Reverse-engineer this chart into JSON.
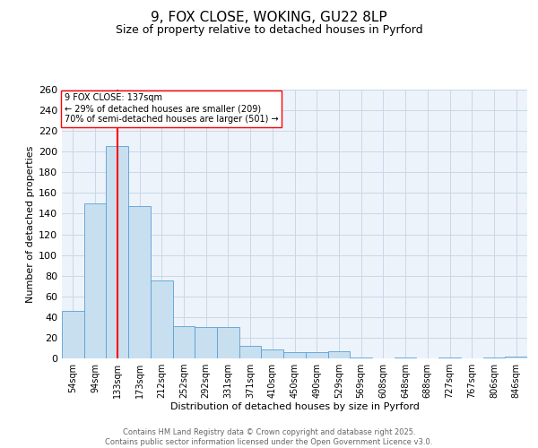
{
  "title1": "9, FOX CLOSE, WOKING, GU22 8LP",
  "title2": "Size of property relative to detached houses in Pyrford",
  "xlabel": "Distribution of detached houses by size in Pyrford",
  "ylabel": "Number of detached properties",
  "categories": [
    "54sqm",
    "94sqm",
    "133sqm",
    "173sqm",
    "212sqm",
    "252sqm",
    "292sqm",
    "331sqm",
    "371sqm",
    "410sqm",
    "450sqm",
    "490sqm",
    "529sqm",
    "569sqm",
    "608sqm",
    "648sqm",
    "688sqm",
    "727sqm",
    "767sqm",
    "806sqm",
    "846sqm"
  ],
  "values": [
    46,
    150,
    205,
    147,
    75,
    31,
    30,
    30,
    12,
    9,
    6,
    6,
    7,
    1,
    0,
    1,
    0,
    1,
    0,
    1,
    2
  ],
  "bar_color": "#c8dff0",
  "bar_edge_color": "#5a9fd4",
  "red_line_index": 2,
  "annotation_text": "9 FOX CLOSE: 137sqm\n← 29% of detached houses are smaller (209)\n70% of semi-detached houses are larger (501) →",
  "ylim_max": 260,
  "ytick_step": 20,
  "grid_color": "#c8d8e8",
  "bg_color": "#edf3fa",
  "footer_text": "Contains HM Land Registry data © Crown copyright and database right 2025.\nContains public sector information licensed under the Open Government Licence v3.0.",
  "title1_fontsize": 11,
  "title2_fontsize": 9,
  "xlabel_fontsize": 8,
  "ylabel_fontsize": 8,
  "tick_fontsize": 7,
  "footer_fontsize": 6,
  "ann_fontsize": 7
}
